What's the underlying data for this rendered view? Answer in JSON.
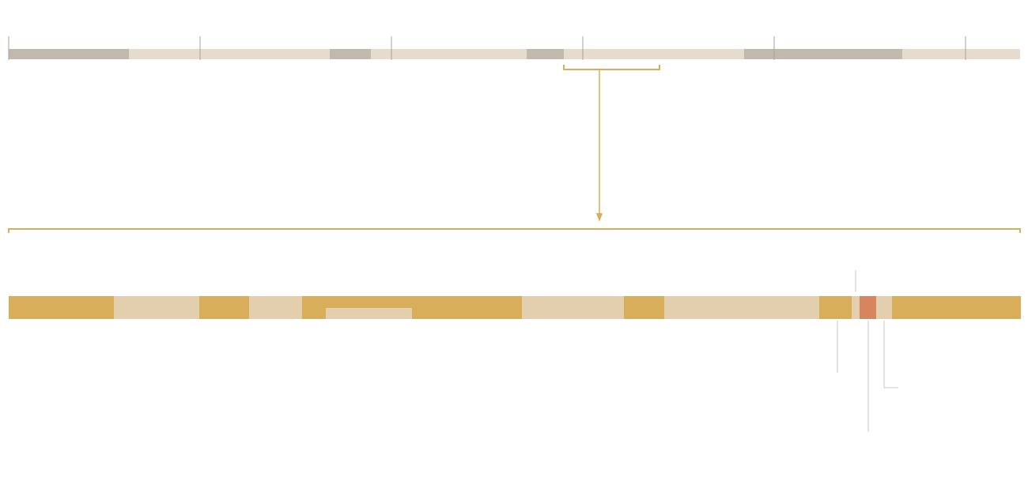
{
  "colors": {
    "overview_dark": "#c1b9ab",
    "overview_light": "#e6dccd",
    "overview_divider": "#a9a298",
    "bracket": "#d8ae5a",
    "gold": "#d8ae5a",
    "beige": "#e3cfae",
    "highlight": "#d8845e",
    "annotation_line": "#c8c8c8"
  },
  "overview": {
    "segments": [
      {
        "tone": "dark"
      },
      {
        "tone": "light"
      },
      {
        "tone": "light"
      },
      {
        "tone": "dark"
      },
      {
        "tone": "light"
      },
      {
        "tone": "light"
      },
      {
        "tone": "dark"
      },
      {
        "tone": "light"
      },
      {
        "tone": "light"
      },
      {
        "tone": "dark"
      },
      {
        "tone": "dark"
      },
      {
        "tone": "light"
      },
      {
        "tone": "light"
      }
    ],
    "divider_count": 6
  },
  "detail": {
    "segments": [
      {
        "tone": "gold"
      },
      {
        "tone": "beige"
      },
      {
        "tone": "gold"
      },
      {
        "tone": "beige"
      },
      {
        "tone": "gold"
      },
      {
        "tone": "gold"
      },
      {
        "tone": "beige"
      },
      {
        "tone": "gold"
      },
      {
        "tone": "beige"
      },
      {
        "tone": "gold"
      },
      {
        "tone": "beige"
      },
      {
        "tone": "highlight"
      },
      {
        "tone": "beige"
      },
      {
        "tone": "gold"
      }
    ],
    "inset_tone": "beige",
    "annotation_count": 4
  }
}
